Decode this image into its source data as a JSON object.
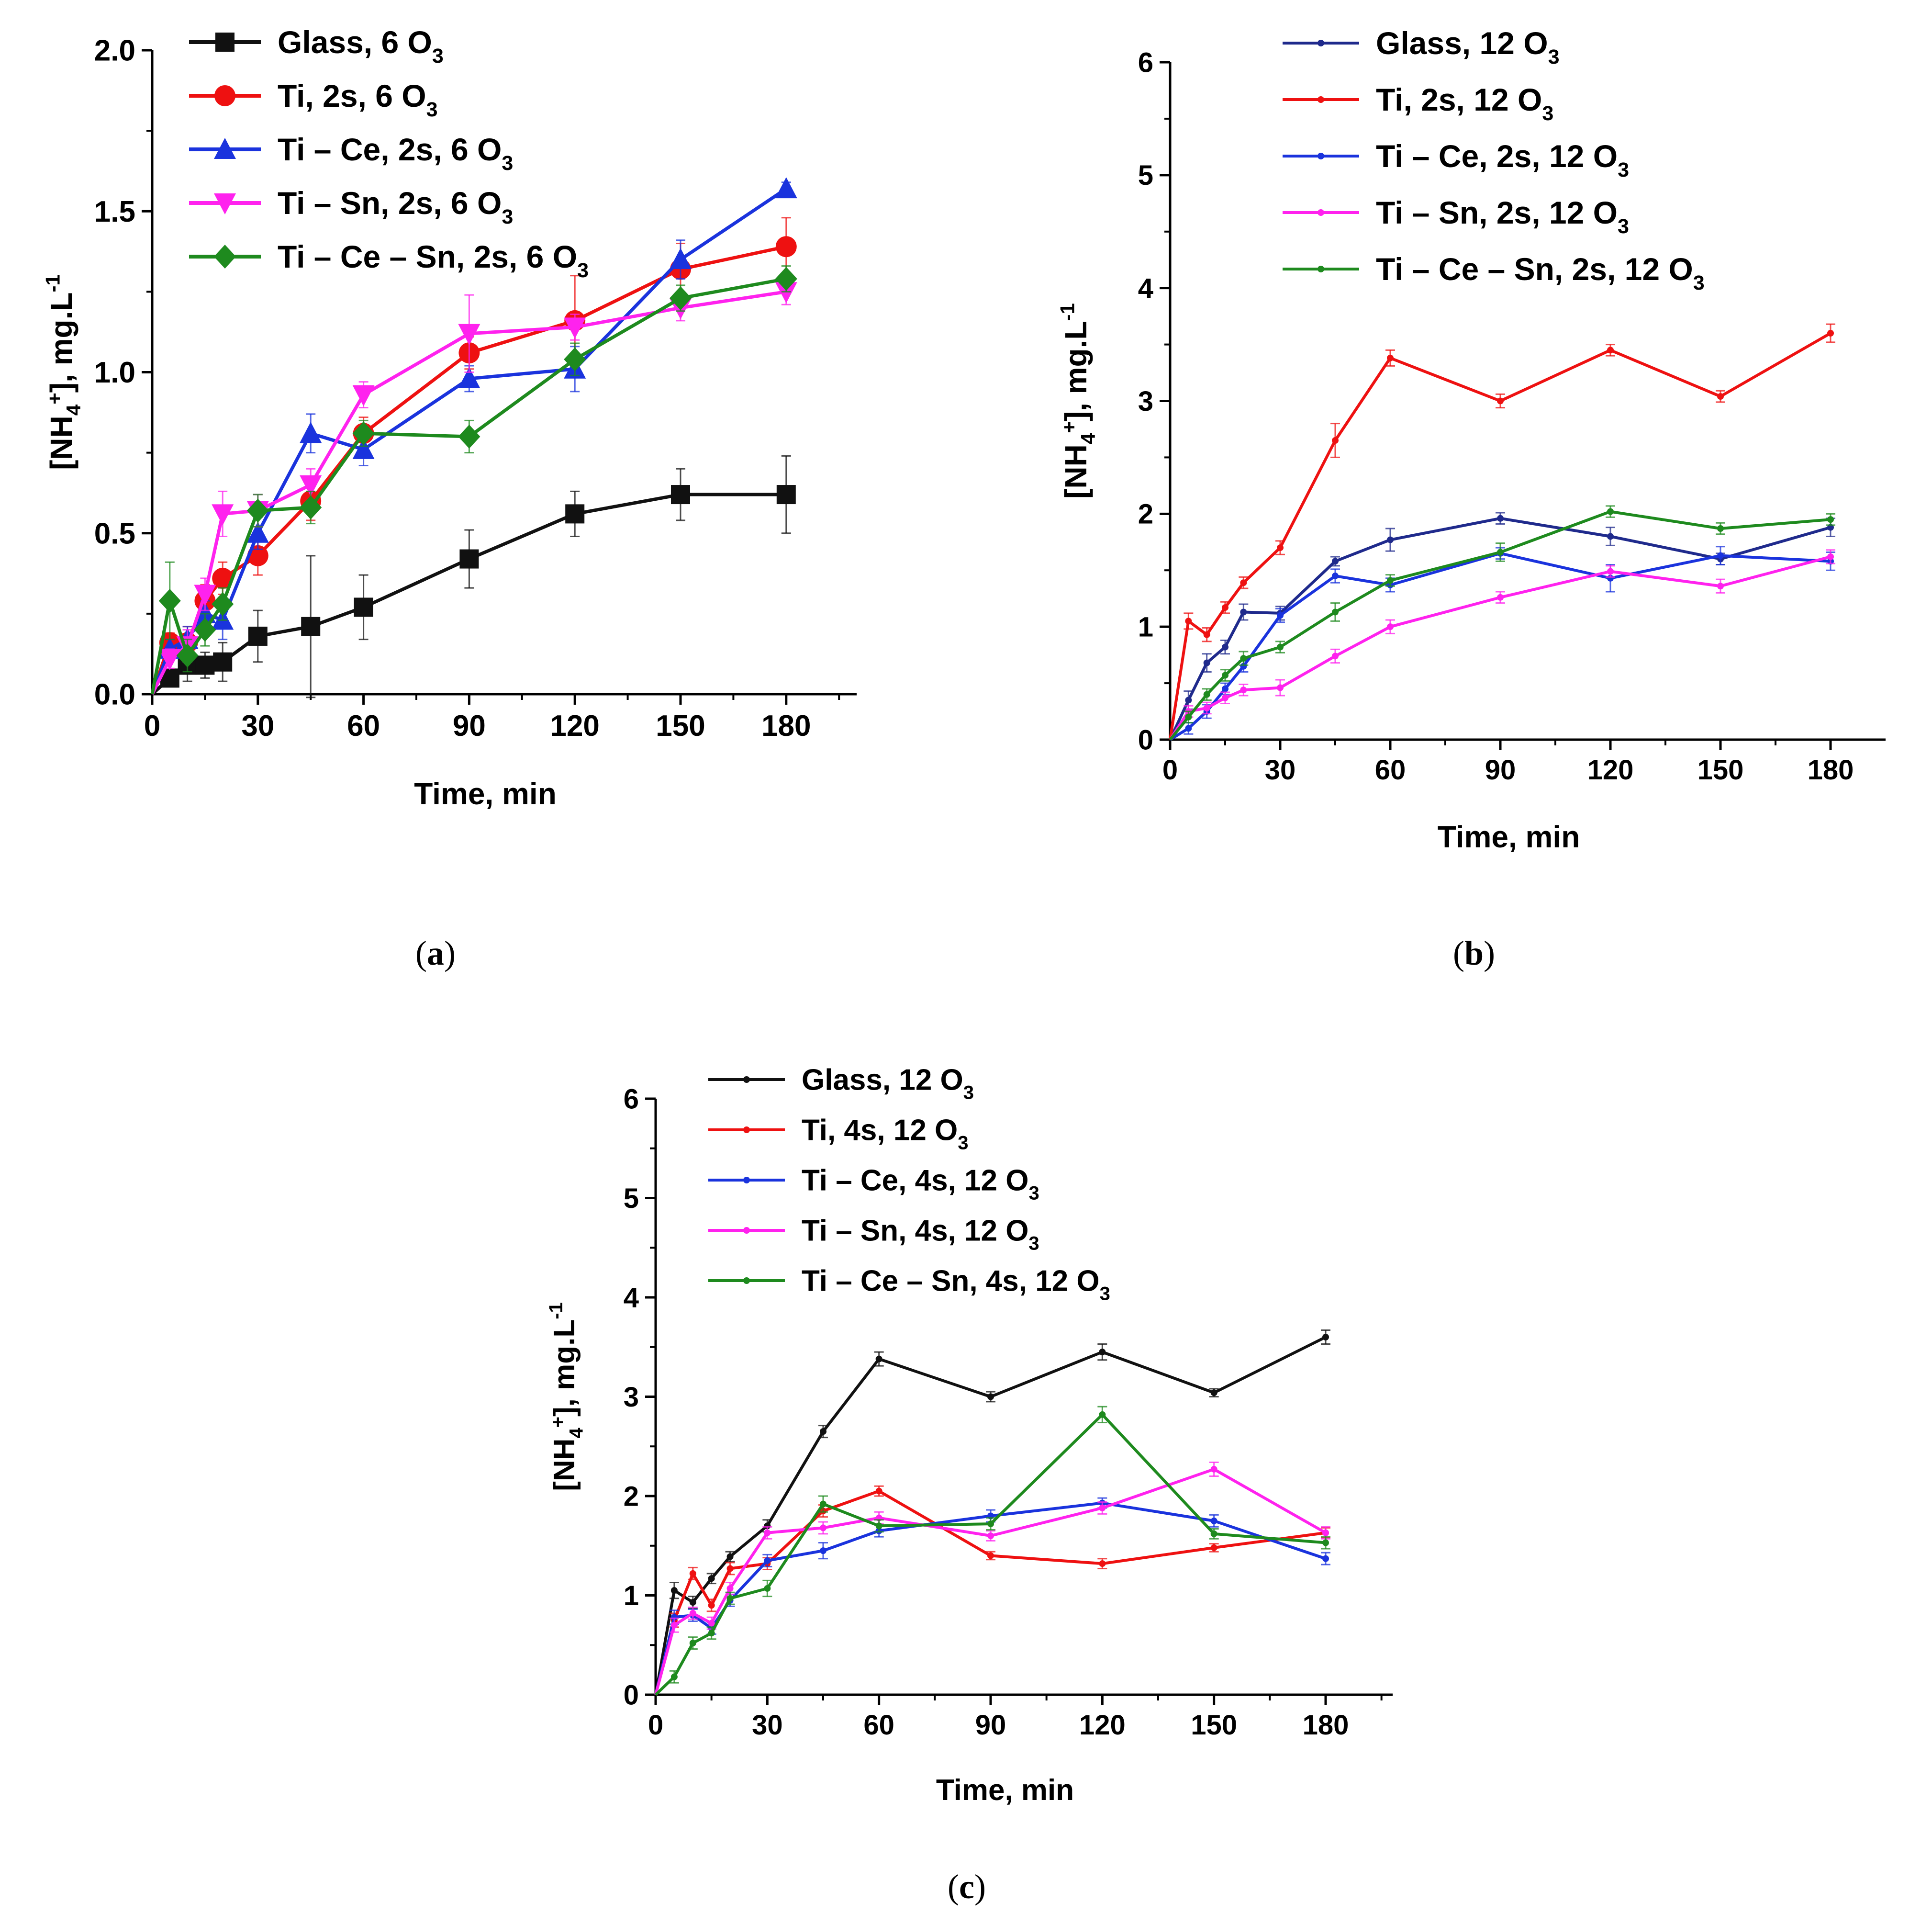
{
  "figure_captions": [
    {
      "open": "(",
      "letter": "a",
      "close": ")"
    },
    {
      "open": "(",
      "letter": "b",
      "close": ")"
    },
    {
      "open": "(",
      "letter": "c",
      "close": ")"
    }
  ],
  "colors": {
    "black": "#111111",
    "red": "#ee1111",
    "blue": "#1a33dd",
    "navy": "#1f2a8c",
    "magenta": "#ff22ee",
    "green": "#1e8a1e"
  },
  "chart_data": [
    {
      "id": "a",
      "type": "line",
      "title": "",
      "xlabel": "Time, min",
      "ylabel_parts": {
        "open": "[NH",
        "sub": "4",
        "sup": "+",
        "close": "], mg.L",
        "sup2": "-1"
      },
      "xlim": [
        0,
        200
      ],
      "ylim": [
        0,
        2.0
      ],
      "xticks": [
        0,
        30,
        60,
        90,
        120,
        150,
        180
      ],
      "xtick_labels": [
        "0",
        "30",
        "60",
        "90",
        "120",
        "150",
        "180"
      ],
      "yticks": [
        0,
        0.5,
        1.0,
        1.5,
        2.0
      ],
      "ytick_labels": [
        "0.0",
        "0.5",
        "1.0",
        "1.5",
        "2.0"
      ],
      "legend_position": "top-left",
      "marker_style": "large",
      "x": [
        0,
        5,
        10,
        15,
        20,
        30,
        45,
        60,
        90,
        120,
        150,
        180
      ],
      "series": [
        {
          "name": "Glass, 6 O",
          "sub": "3",
          "color": "black",
          "marker": "square",
          "values": [
            0,
            0.05,
            0.09,
            0.09,
            0.1,
            0.18,
            0.21,
            0.27,
            0.42,
            0.56,
            0.62,
            0.62
          ],
          "errors": [
            0,
            0.02,
            0.05,
            0.04,
            0.06,
            0.08,
            0.22,
            0.1,
            0.09,
            0.07,
            0.08,
            0.12
          ]
        },
        {
          "name": "Ti, 2s, 6 O",
          "sub": "3",
          "color": "red",
          "marker": "circle",
          "values": [
            0,
            0.16,
            0.16,
            0.29,
            0.36,
            0.43,
            0.6,
            0.81,
            1.06,
            1.16,
            1.32,
            1.39
          ],
          "errors": [
            0,
            0.03,
            0.05,
            0.05,
            0.05,
            0.06,
            0.06,
            0.05,
            0.05,
            0.14,
            0.08,
            0.09
          ]
        },
        {
          "name": "Ti – Ce, 2s, 6 O",
          "sub": "3",
          "color": "blue",
          "marker": "triangle",
          "values": [
            0,
            0.14,
            0.17,
            0.25,
            0.23,
            0.5,
            0.81,
            0.76,
            0.98,
            1.01,
            1.35,
            1.57
          ],
          "errors": [
            0,
            0.03,
            0.04,
            0.04,
            0.06,
            0.05,
            0.06,
            0.05,
            0.04,
            0.07,
            0.06,
            0.02
          ]
        },
        {
          "name": "Ti – Sn, 2s, 6 O",
          "sub": "3",
          "color": "magenta",
          "marker": "triangle-down",
          "values": [
            0,
            0.11,
            0.15,
            0.31,
            0.56,
            0.57,
            0.65,
            0.93,
            1.12,
            1.14,
            1.2,
            1.25
          ],
          "errors": [
            0,
            0.03,
            0.05,
            0.05,
            0.07,
            0.05,
            0.05,
            0.04,
            0.12,
            0.04,
            0.04,
            0.04
          ]
        },
        {
          "name": "Ti – Ce – Sn, 2s, 6 O",
          "sub": "3",
          "color": "green",
          "marker": "diamond",
          "values": [
            0,
            0.29,
            0.12,
            0.2,
            0.28,
            0.57,
            0.58,
            0.81,
            0.8,
            1.04,
            1.23,
            1.29
          ],
          "errors": [
            0,
            0.12,
            0.05,
            0.05,
            0.05,
            0.05,
            0.05,
            0.04,
            0.05,
            0.05,
            0.04,
            0.04
          ]
        }
      ]
    },
    {
      "id": "b",
      "type": "line",
      "title": "",
      "xlabel": "Time, min",
      "ylabel_parts": {
        "open": "[NH",
        "sub": "4",
        "sup": "+",
        "close": "], mg.L",
        "sup2": "-1"
      },
      "xlim": [
        0,
        195
      ],
      "ylim": [
        0,
        6
      ],
      "xticks": [
        0,
        30,
        60,
        90,
        120,
        150,
        180
      ],
      "xtick_labels": [
        "0",
        "30",
        "60",
        "90",
        "120",
        "150",
        "180"
      ],
      "yticks": [
        0,
        1,
        2,
        3,
        4,
        5,
        6
      ],
      "ytick_labels": [
        "0",
        "1",
        "2",
        "3",
        "4",
        "5",
        "6"
      ],
      "legend_position": "top-left",
      "marker_style": "small",
      "x": [
        0,
        5,
        10,
        15,
        20,
        30,
        45,
        60,
        90,
        120,
        150,
        180
      ],
      "series": [
        {
          "name": "Glass, 12 O",
          "sub": "3",
          "color": "navy",
          "marker": "dot",
          "values": [
            0,
            0.35,
            0.68,
            0.82,
            1.13,
            1.12,
            1.58,
            1.77,
            1.96,
            1.8,
            1.6,
            1.88
          ],
          "errors": [
            0,
            0.08,
            0.08,
            0.06,
            0.07,
            0.06,
            0.04,
            0.1,
            0.05,
            0.08,
            0.05,
            0.08
          ]
        },
        {
          "name": "Ti, 2s, 12 O",
          "sub": "3",
          "color": "red",
          "marker": "dot",
          "values": [
            0,
            1.05,
            0.93,
            1.17,
            1.39,
            1.7,
            2.65,
            3.38,
            3.0,
            3.45,
            3.04,
            3.6
          ],
          "errors": [
            0,
            0.07,
            0.06,
            0.05,
            0.05,
            0.06,
            0.15,
            0.07,
            0.06,
            0.05,
            0.05,
            0.08
          ]
        },
        {
          "name": "Ti – Ce, 2s, 12 O",
          "sub": "3",
          "color": "blue",
          "marker": "dot",
          "values": [
            0,
            0.1,
            0.25,
            0.45,
            0.65,
            1.1,
            1.45,
            1.37,
            1.65,
            1.43,
            1.63,
            1.58
          ],
          "errors": [
            0,
            0.05,
            0.06,
            0.05,
            0.05,
            0.06,
            0.06,
            0.06,
            0.05,
            0.12,
            0.08,
            0.08
          ]
        },
        {
          "name": "Ti – Sn, 2s, 12 O",
          "sub": "3",
          "color": "magenta",
          "marker": "dot",
          "values": [
            0,
            0.25,
            0.28,
            0.37,
            0.44,
            0.46,
            0.74,
            1.0,
            1.26,
            1.49,
            1.36,
            1.62
          ],
          "errors": [
            0,
            0.05,
            0.05,
            0.05,
            0.05,
            0.07,
            0.06,
            0.06,
            0.05,
            0.05,
            0.06,
            0.06
          ]
        },
        {
          "name": "Ti – Ce – Sn, 2s, 12 O",
          "sub": "3",
          "color": "green",
          "marker": "dot",
          "values": [
            0,
            0.2,
            0.4,
            0.57,
            0.72,
            0.82,
            1.13,
            1.41,
            1.66,
            2.02,
            1.87,
            1.95
          ],
          "errors": [
            0,
            0.05,
            0.05,
            0.05,
            0.06,
            0.05,
            0.08,
            0.05,
            0.08,
            0.05,
            0.05,
            0.05
          ]
        }
      ]
    },
    {
      "id": "c",
      "type": "line",
      "title": "",
      "xlabel": "Time, min",
      "ylabel_parts": {
        "open": "[NH",
        "sub": "4",
        "sup": "+",
        "close": "], mg.L",
        "sup2": "-1"
      },
      "xlim": [
        0,
        198
      ],
      "ylim": [
        0,
        6
      ],
      "xticks": [
        0,
        30,
        60,
        90,
        120,
        150,
        180
      ],
      "xtick_labels": [
        "0",
        "30",
        "60",
        "90",
        "120",
        "150",
        "180"
      ],
      "yticks": [
        0,
        1,
        2,
        3,
        4,
        5,
        6
      ],
      "ytick_labels": [
        "0",
        "1",
        "2",
        "3",
        "4",
        "5",
        "6"
      ],
      "legend_position": "top-left",
      "marker_style": "small",
      "x": [
        0,
        5,
        10,
        15,
        20,
        30,
        45,
        60,
        90,
        120,
        150,
        180
      ],
      "series": [
        {
          "name": "Glass, 12 O",
          "sub": "3",
          "color": "black",
          "marker": "dot",
          "values": [
            0,
            1.05,
            0.93,
            1.17,
            1.39,
            1.7,
            2.65,
            3.38,
            3.0,
            3.45,
            3.04,
            3.6
          ],
          "errors": [
            0,
            0.08,
            0.06,
            0.05,
            0.05,
            0.06,
            0.06,
            0.07,
            0.05,
            0.08,
            0.04,
            0.07
          ]
        },
        {
          "name": "Ti, 4s, 12 O",
          "sub": "3",
          "color": "red",
          "marker": "dot",
          "values": [
            0,
            0.75,
            1.22,
            0.9,
            1.27,
            1.32,
            1.85,
            2.05,
            1.4,
            1.32,
            1.48,
            1.63
          ],
          "errors": [
            0,
            0.07,
            0.06,
            0.06,
            0.06,
            0.06,
            0.06,
            0.05,
            0.04,
            0.05,
            0.04,
            0.05
          ]
        },
        {
          "name": "Ti – Ce, 4s, 12 O",
          "sub": "3",
          "color": "blue",
          "marker": "dot",
          "values": [
            0,
            0.78,
            0.8,
            0.67,
            0.95,
            1.35,
            1.45,
            1.65,
            1.8,
            1.93,
            1.75,
            1.37
          ],
          "errors": [
            0,
            0.07,
            0.06,
            0.06,
            0.06,
            0.06,
            0.08,
            0.06,
            0.06,
            0.05,
            0.06,
            0.06
          ]
        },
        {
          "name": "Ti – Sn, 4s, 12 O",
          "sub": "3",
          "color": "magenta",
          "marker": "dot",
          "values": [
            0,
            0.7,
            0.82,
            0.72,
            1.07,
            1.63,
            1.68,
            1.78,
            1.6,
            1.88,
            2.27,
            1.63
          ],
          "errors": [
            0,
            0.07,
            0.06,
            0.06,
            0.06,
            0.06,
            0.06,
            0.06,
            0.05,
            0.06,
            0.07,
            0.06
          ]
        },
        {
          "name": "Ti – Ce – Sn, 4s, 12 O",
          "sub": "3",
          "color": "green",
          "marker": "dot",
          "values": [
            0,
            0.18,
            0.52,
            0.62,
            0.97,
            1.07,
            1.92,
            1.7,
            1.72,
            2.82,
            1.62,
            1.53
          ],
          "errors": [
            0,
            0.06,
            0.06,
            0.06,
            0.06,
            0.08,
            0.08,
            0.06,
            0.06,
            0.08,
            0.05,
            0.06
          ]
        }
      ]
    }
  ]
}
